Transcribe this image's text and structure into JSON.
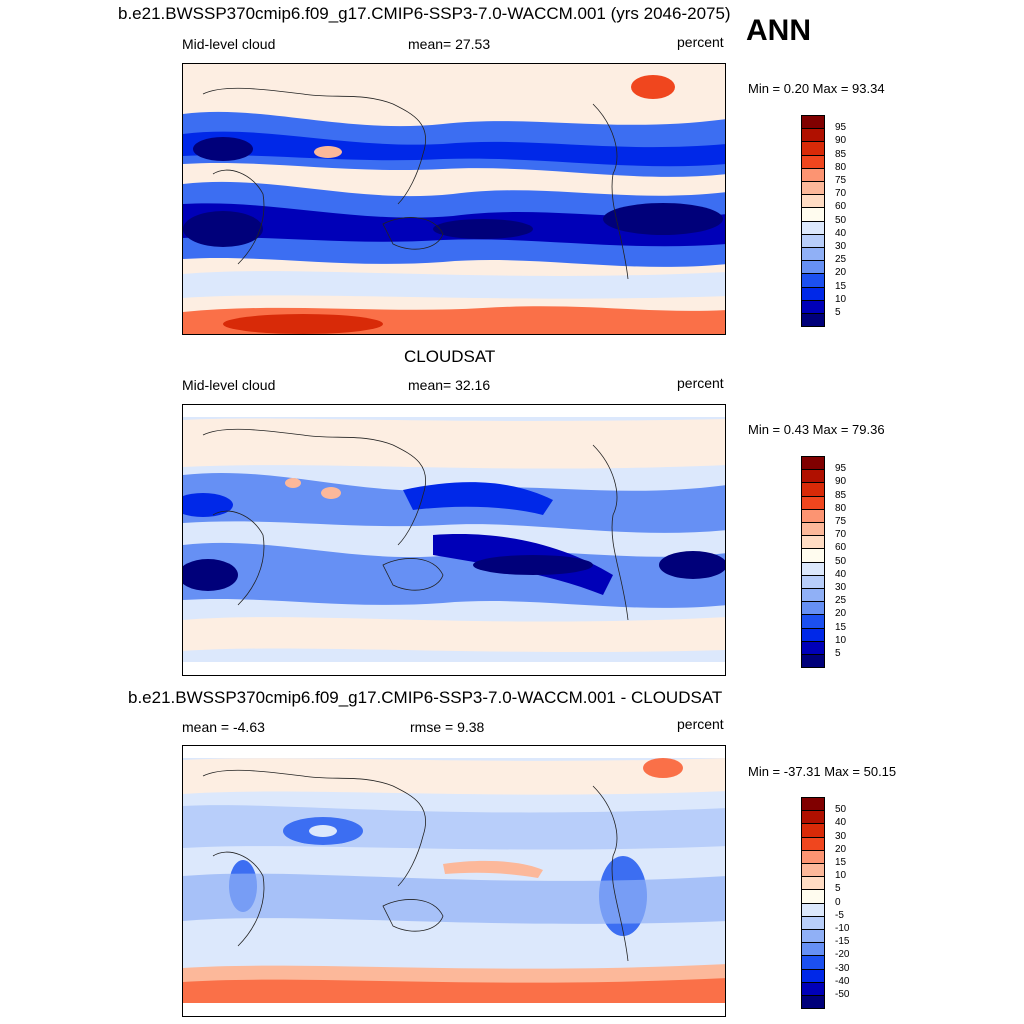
{
  "season": "ANN",
  "colors": {
    "levels": [
      "#00007a",
      "#0000b8",
      "#0028e8",
      "#1c50f0",
      "#3c6ef2",
      "#6690f4",
      "#90b0f6",
      "#b8cefa",
      "#dce8fc",
      "#fffcef",
      "#ffdcc4",
      "#fcb89a",
      "#fc9472",
      "#fa7048",
      "#f0461e",
      "#d82a08",
      "#b01000",
      "#800000"
    ]
  },
  "panels": [
    {
      "id": "model",
      "title": "b.e21.BWSSP370cmip6.f09_g17.CMIP6-SSP3-7.0-WACCM.001 (yrs 2046-2075)",
      "left_label": "Mid-level cloud",
      "center_label": "mean=  27.53",
      "right_label": "percent",
      "minmax": "Min =   0.20 Max =  93.34",
      "colorbar_labels": [
        "95",
        "90",
        "85",
        "80",
        "75",
        "70",
        "60",
        "50",
        "40",
        "30",
        "25",
        "20",
        "15",
        "10",
        "5"
      ]
    },
    {
      "id": "obs",
      "title": "CLOUDSAT",
      "left_label": "Mid-level cloud",
      "center_label": "mean=  32.16",
      "right_label": "percent",
      "minmax": "Min =   0.43 Max =  79.36",
      "colorbar_labels": [
        "95",
        "90",
        "85",
        "80",
        "75",
        "70",
        "60",
        "50",
        "40",
        "30",
        "25",
        "20",
        "15",
        "10",
        "5"
      ]
    },
    {
      "id": "diff",
      "title": "b.e21.BWSSP370cmip6.f09_g17.CMIP6-SSP3-7.0-WACCM.001 - CLOUDSAT",
      "left_label": "mean =  -4.63",
      "center_label": "rmse =   9.38",
      "right_label": "percent",
      "minmax": "Min = -37.31 Max =  50.15",
      "colorbar_labels": [
        "50",
        "40",
        "30",
        "20",
        "15",
        "10",
        "5",
        "0",
        "-5",
        "-10",
        "-15",
        "-20",
        "-30",
        "-40",
        "-50"
      ]
    }
  ],
  "chart_data": [
    {
      "type": "heatmap",
      "title": "b.e21.BWSSP370cmip6.f09_g17.CMIP6-SSP3-7.0-WACCM.001 (yrs 2046-2075)",
      "variable": "Mid-level cloud",
      "units": "percent",
      "mean": 27.53,
      "min": 0.2,
      "max": 93.34,
      "levels": [
        5,
        10,
        15,
        20,
        25,
        30,
        40,
        50,
        60,
        70,
        75,
        80,
        85,
        90,
        95
      ]
    },
    {
      "type": "heatmap",
      "title": "CLOUDSAT",
      "variable": "Mid-level cloud",
      "units": "percent",
      "mean": 32.16,
      "min": 0.43,
      "max": 79.36,
      "levels": [
        5,
        10,
        15,
        20,
        25,
        30,
        40,
        50,
        60,
        70,
        75,
        80,
        85,
        90,
        95
      ]
    },
    {
      "type": "heatmap",
      "title": "b.e21.BWSSP370cmip6.f09_g17.CMIP6-SSP3-7.0-WACCM.001 - CLOUDSAT",
      "units": "percent",
      "mean": -4.63,
      "rmse": 9.38,
      "min": -37.31,
      "max": 50.15,
      "levels": [
        -50,
        -40,
        -30,
        -20,
        -15,
        -10,
        -5,
        0,
        5,
        10,
        15,
        20,
        30,
        40,
        50
      ]
    }
  ]
}
